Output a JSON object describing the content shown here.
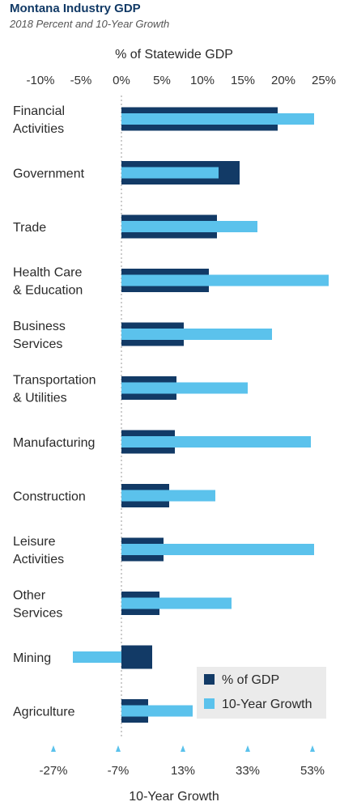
{
  "chart_data": {
    "type": "bar",
    "title": "Montana Industry GDP",
    "subtitle": "2018 Percent and 10-Year Growth",
    "top_axis": {
      "label": "% of Statewide GDP",
      "ticks": [
        -10,
        -5,
        0,
        5,
        10,
        15,
        20,
        25
      ],
      "tick_labels": [
        "-10%",
        "-5%",
        "0%",
        "5%",
        "10%",
        "15%",
        "20%",
        "25%"
      ],
      "range": [
        -14,
        26
      ]
    },
    "bottom_axis": {
      "label": "10-Year Growth",
      "ticks": [
        -27,
        -7,
        13,
        33,
        53
      ],
      "tick_labels": [
        "-27%",
        "-7%",
        "13%",
        "33%",
        "53%"
      ],
      "range": [
        -41,
        59
      ]
    },
    "categories": [
      [
        "Financial",
        "Activities"
      ],
      [
        "Government"
      ],
      [
        "Trade"
      ],
      [
        "Health Care",
        "& Education"
      ],
      [
        "Business",
        "Services"
      ],
      [
        "Transportation",
        "& Utilities"
      ],
      [
        "Manufacturing"
      ],
      [
        "Construction"
      ],
      [
        "Leisure",
        "Activities"
      ],
      [
        "Other",
        "Services"
      ],
      [
        "Mining"
      ],
      [
        "Agriculture"
      ]
    ],
    "series": [
      {
        "name": "% of GDP",
        "axis": "top",
        "color": "#123a66",
        "values": [
          19.3,
          14.6,
          11.8,
          10.8,
          7.7,
          6.8,
          6.6,
          5.9,
          5.2,
          4.7,
          3.8,
          3.3
        ]
      },
      {
        "name": "10-Year Growth",
        "axis": "bottom",
        "color": "#5bc2ec",
        "values": [
          53.5,
          24.0,
          36.0,
          58.0,
          40.5,
          33.0,
          52.5,
          23.0,
          53.5,
          28.0,
          -21.0,
          16.0
        ]
      }
    ],
    "legend": {
      "position": "bottom-right"
    },
    "grid": false
  }
}
